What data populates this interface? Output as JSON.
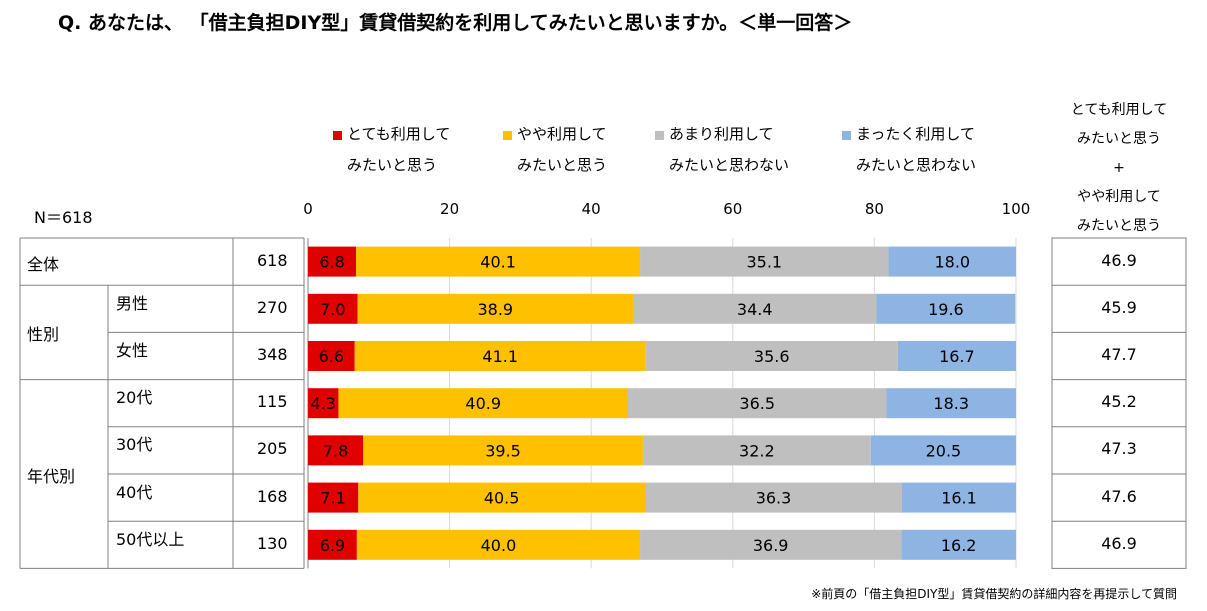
{
  "title": "Q. あなたは、 「借主負担DIY型」賃貸借契約を利用してみたいと思いますか。＜単一回答＞",
  "n_label": "N＝618",
  "legend": [
    {
      "line1": "とても利用して",
      "line2": "みたいと思う",
      "color": "#e00000"
    },
    {
      "line1": "やや利用して",
      "line2": "みたいと思う",
      "color": "#ffc000"
    },
    {
      "line1": "あまり利用して",
      "line2": "みたいと思わない",
      "color": "#bfbfbf"
    },
    {
      "line1": "まったく利用して",
      "line2": "みたいと思わない",
      "color": "#8eb4e3"
    }
  ],
  "right_header": [
    "とても利用して",
    "みたいと思う",
    "+",
    "やや利用して",
    "みたいと思う"
  ],
  "footnote": "※前頁の「借主負担DIY型」賃貸借契約の詳細内容を再提示して質問",
  "groups": [
    {
      "label": "全体"
    },
    {
      "label": "性別"
    },
    {
      "label": "年代別"
    }
  ],
  "rows": [
    {
      "label": "",
      "n": "618",
      "total": "46.9"
    },
    {
      "label": "男性",
      "n": "270",
      "total": "45.9"
    },
    {
      "label": "女性",
      "n": "348",
      "total": "47.7"
    },
    {
      "label": "20代",
      "n": "115",
      "total": "45.2"
    },
    {
      "label": "30代",
      "n": "205",
      "total": "47.3"
    },
    {
      "label": "40代",
      "n": "168",
      "total": "47.6"
    },
    {
      "label": "50代以上",
      "n": "130",
      "total": "46.9"
    }
  ],
  "chart_data": {
    "type": "bar",
    "orientation": "horizontal",
    "stacked": true,
    "xlim": [
      0,
      100
    ],
    "xticks": [
      "0",
      "20",
      "40",
      "60",
      "80",
      "100"
    ],
    "categories": [
      "全体",
      "男性",
      "女性",
      "20代",
      "30代",
      "40代",
      "50代以上"
    ],
    "series": [
      {
        "name": "とても利用してみたいと思う",
        "color": "#e00000",
        "values": [
          6.8,
          7.0,
          6.6,
          4.3,
          7.8,
          7.1,
          6.9
        ],
        "labels": [
          "6.8",
          "7.0",
          "6.6",
          "4.3",
          "7.8",
          "7.1",
          "6.9"
        ]
      },
      {
        "name": "やや利用してみたいと思う",
        "color": "#ffc000",
        "values": [
          40.1,
          38.9,
          41.1,
          40.9,
          39.5,
          40.5,
          40.0
        ],
        "labels": [
          "40.1",
          "38.9",
          "41.1",
          "40.9",
          "39.5",
          "40.5",
          "40.0"
        ]
      },
      {
        "name": "あまり利用してみたいと思わない",
        "color": "#bfbfbf",
        "values": [
          35.1,
          34.4,
          35.6,
          36.5,
          32.2,
          36.3,
          36.9
        ],
        "labels": [
          "35.1",
          "34.4",
          "35.6",
          "36.5",
          "32.2",
          "36.3",
          "36.9"
        ]
      },
      {
        "name": "まったく利用してみたいと思わない",
        "color": "#8eb4e3",
        "values": [
          18.0,
          19.6,
          16.7,
          18.3,
          20.5,
          16.1,
          16.2
        ],
        "labels": [
          "18.0",
          "19.6",
          "16.7",
          "18.3",
          "20.5",
          "16.1",
          "16.2"
        ]
      }
    ]
  }
}
